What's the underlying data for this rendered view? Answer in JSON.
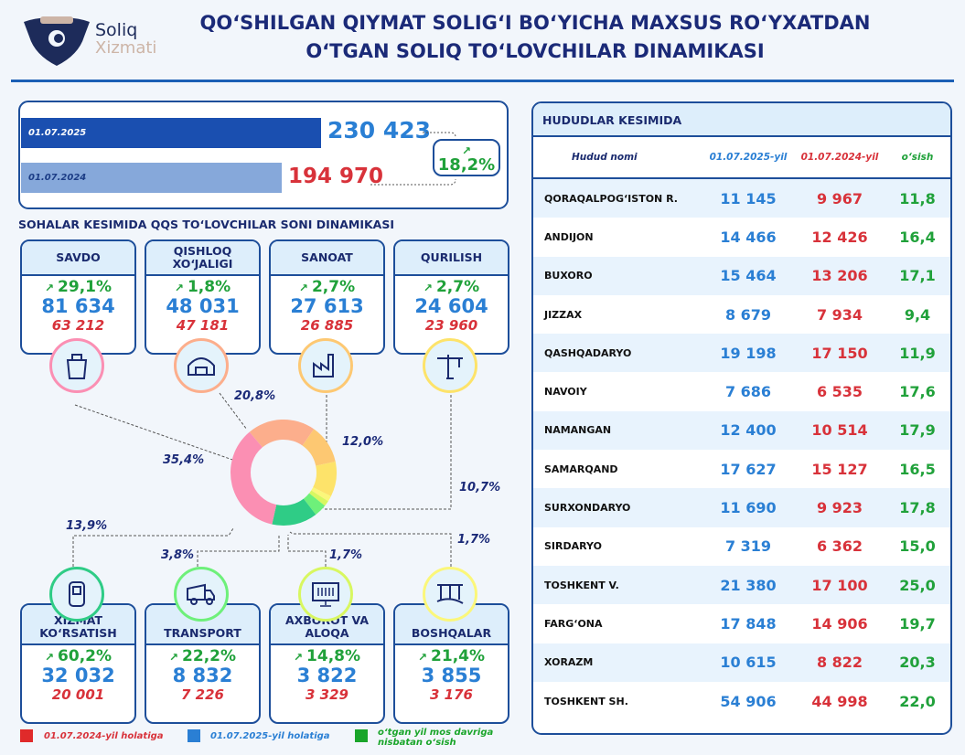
{
  "logo": {
    "line1": "Soliq",
    "line2": "Xizmati"
  },
  "title": {
    "line1": "QO‘SHILGAN QIYMAT SOLIG‘I BO‘YICHA MAXSUS RO‘YXATDAN",
    "line2": "O‘TGAN SOLIQ TO‘LOVCHILAR DINAMIKASI"
  },
  "summary": {
    "date_2025": "01.07.2025",
    "value_2025": "230 423",
    "date_2024": "01.07.2024",
    "value_2024": "194 970",
    "growth": "18,2%",
    "trend_icon": "trend-up-icon"
  },
  "sectors_title": "SOHALAR KESIMIDA QQS TO‘LOVCHILAR SONI DINAMIKASI",
  "sectors": [
    {
      "name": "SAVDO",
      "growth": "29,1%",
      "v2025": "81 634",
      "v2024": "63 212",
      "share": "35,4%",
      "share_value": 35.4,
      "color": "#fb8fb3",
      "icon": "shopping-bag-icon"
    },
    {
      "name": "QISHLOQ XO‘JALIGI",
      "growth": "1,8%",
      "v2025": "48 031",
      "v2024": "47 181",
      "share": "20,8%",
      "share_value": 20.8,
      "color": "#fcae8c",
      "icon": "greenhouse-icon"
    },
    {
      "name": "SANOAT",
      "growth": "2,7%",
      "v2025": "27 613",
      "v2024": "26 885",
      "share": "12,0%",
      "share_value": 12.0,
      "color": "#fdc872",
      "icon": "factory-icon"
    },
    {
      "name": "QURILISH",
      "growth": "2,7%",
      "v2025": "24 604",
      "v2024": "23 960",
      "share": "10,7%",
      "share_value": 10.7,
      "color": "#fde36a",
      "icon": "crane-icon"
    },
    {
      "name": "XIZMAT KO‘RSATISH",
      "growth": "60,2%",
      "v2025": "32 032",
      "v2024": "20 001",
      "share": "13,9%",
      "share_value": 13.9,
      "color": "#2fcc86",
      "icon": "fuel-pump-icon"
    },
    {
      "name": "TRANSPORT",
      "growth": "22,2%",
      "v2025": "8 832",
      "v2024": "7 226",
      "share": "3,8%",
      "share_value": 3.8,
      "color": "#6ef07a",
      "icon": "truck-icon"
    },
    {
      "name": "AXBOROT VA ALOQA",
      "growth": "14,8%",
      "v2025": "3 822",
      "v2024": "3 329",
      "share": "1,7%",
      "share_value": 1.7,
      "color": "#d8f760",
      "icon": "monitor-icon"
    },
    {
      "name": "BOSHQALAR",
      "growth": "21,4%",
      "v2025": "3 855",
      "v2024": "3 176",
      "share": "1,7%",
      "share_value": 1.7,
      "color": "#fbf77a",
      "icon": "bridge-icon"
    }
  ],
  "legend": [
    {
      "label": "01.07.2024-yil holatiga",
      "color": "#e02a2a"
    },
    {
      "label": "01.07.2025-yil holatiga",
      "color": "#2a7fd4"
    },
    {
      "label": "o‘tgan yil mos davriga nisbatan o‘sish",
      "color": "#1aa52a"
    }
  ],
  "regions": {
    "title": "HUDUDLAR KESIMIDA",
    "headers": [
      "Hudud nomi",
      "01.07.2025-yil",
      "01.07.2024-yil",
      "o‘sish"
    ],
    "rows": [
      [
        "QORAQALPOG‘ISTON R.",
        "11 145",
        "9 967",
        "11,8"
      ],
      [
        "ANDIJON",
        "14 466",
        "12 426",
        "16,4"
      ],
      [
        "BUXORO",
        "15 464",
        "13 206",
        "17,1"
      ],
      [
        "JIZZAX",
        "8 679",
        "7 934",
        "9,4"
      ],
      [
        "QASHQADARYO",
        "19 198",
        "17 150",
        "11,9"
      ],
      [
        "NAVOIY",
        "7 686",
        "6 535",
        "17,6"
      ],
      [
        "NAMANGAN",
        "12 400",
        "10 514",
        "17,9"
      ],
      [
        "SAMARQAND",
        "17 627",
        "15 127",
        "16,5"
      ],
      [
        "SURXONDARYO",
        "11 690",
        "9 923",
        "17,8"
      ],
      [
        "SIRDARYO",
        "7 319",
        "6 362",
        "15,0"
      ],
      [
        "TOSHKENT V.",
        "21 380",
        "17 100",
        "25,0"
      ],
      [
        "FARG‘ONA",
        "17 848",
        "14 906",
        "19,7"
      ],
      [
        "XORAZM",
        "10 615",
        "8 822",
        "20,3"
      ],
      [
        "TOSHKENT SH.",
        "54 906",
        "44 998",
        "22,0"
      ]
    ]
  }
}
